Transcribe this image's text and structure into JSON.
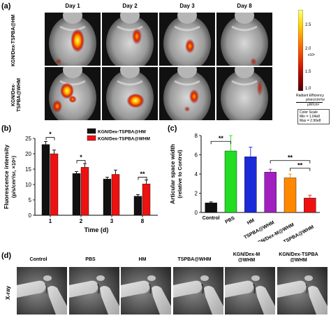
{
  "panel_a": {
    "letter": "(a)",
    "days": [
      "Day 1",
      "Day 2",
      "Day 3",
      "Day 8"
    ],
    "rows": [
      "KGN/Dex-TSPBA@HM",
      "KGN/Dex-TSPBA@WHM"
    ],
    "colorbar": {
      "ticks": [
        "2.5",
        "2.0",
        "1.5",
        "1.0"
      ],
      "exponent": "x10⁸",
      "title_lines": [
        "Radiant Efficiency",
        "p/sec/cm²/sr",
        "μW/cm²"
      ],
      "scale_lines": [
        "Color Scale",
        "Min = 1.04e8",
        "Max = 2.90e8"
      ],
      "colors": [
        "#ffff80",
        "#ffd000",
        "#ff6a00",
        "#d81800",
        "#8a0000",
        "#4a0000"
      ]
    },
    "spot_colors": [
      "#ffff66",
      "#ffb000",
      "#e02000",
      "#7a0000"
    ]
  },
  "panel_b": {
    "letter": "(b)",
    "chart_data": {
      "type": "bar",
      "categories": [
        "1",
        "2",
        "3",
        "8"
      ],
      "xlabel": "Time (d)",
      "ylabel": "Fluorescence intensity",
      "ylabel2": "(p/s/cm²/sr, ×10⁶)",
      "ylim": [
        0,
        25
      ],
      "yticks": [
        0,
        5,
        10,
        15,
        20,
        25
      ],
      "series": [
        {
          "name": "KGN/Dex-TSPBA@HM",
          "color": "#111111",
          "values": [
            23.0,
            13.6,
            11.8,
            6.2
          ],
          "errors": [
            1.0,
            0.6,
            0.6,
            0.5
          ]
        },
        {
          "name": "KGN/Dex-TSPBA@WHM",
          "color": "#ee1111",
          "values": [
            20.0,
            15.6,
            13.3,
            10.2
          ],
          "errors": [
            1.2,
            1.2,
            1.4,
            1.3
          ]
        }
      ],
      "significance": [
        {
          "category": "1",
          "label": "*",
          "y": 25.3
        },
        {
          "category": "2",
          "label": "*",
          "y": 17.8
        },
        {
          "category": "8",
          "label": "**",
          "y": 12.4
        }
      ],
      "legend": "top-right"
    }
  },
  "panel_c": {
    "letter": "(c)",
    "chart_data": {
      "type": "bar",
      "categories": [
        "Control",
        "PBS",
        "HM",
        "TSPBA@WHM",
        "KGN/Dex-M@WHM",
        "KGN/Dex-TSPBA@WHM"
      ],
      "values": [
        1.0,
        6.4,
        5.8,
        4.2,
        3.6,
        1.5
      ],
      "errors": [
        0.1,
        1.6,
        1.0,
        0.3,
        0.4,
        0.3
      ],
      "colors": [
        "#111111",
        "#22dd22",
        "#1a2ad8",
        "#a020c0",
        "#ff8800",
        "#ee1111"
      ],
      "ylabel": "Articular space width",
      "ylabel2": "(relative to Control)",
      "ylim": [
        0,
        8
      ],
      "yticks": [
        0,
        2,
        4,
        6,
        8
      ],
      "significance": [
        {
          "from": "Control",
          "to": "PBS",
          "label": "**",
          "y": 7.4
        },
        {
          "from": "TSPBA@WHM",
          "to": "KGN/Dex-TSPBA@WHM",
          "label": "**",
          "y": 5.4
        },
        {
          "from": "KGN/Dex-M@WHM",
          "to": "KGN/Dex-TSPBA@WHM",
          "label": "**",
          "y": 4.6
        }
      ]
    }
  },
  "panel_d": {
    "letter": "(d)",
    "row_label": "X-ray",
    "columns": [
      [
        "Control"
      ],
      [
        "PBS"
      ],
      [
        "HM"
      ],
      [
        "TSPBA@WHM"
      ],
      [
        "KGN/Dex-M",
        "@WHM"
      ],
      [
        "KGN/Dex-TSPBA",
        "@WHM"
      ]
    ]
  }
}
